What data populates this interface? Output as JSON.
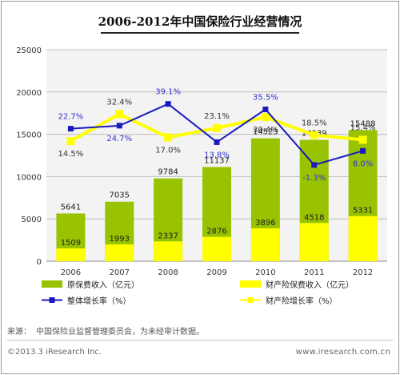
{
  "title": "2006-2012年中国保险行业经营情况",
  "source_label": "来源：",
  "source_text": "中国保险业监督管理委员会，为未经审计数据。",
  "copyright": "©2013.3 iResearch Inc.",
  "website": "www.iresearch.com.cn",
  "colors": {
    "total_bar": "#99c200",
    "property_bar": "#ffff00",
    "total_growth_line": "#1a1abf",
    "property_growth_line": "#ffff00",
    "growth_label": "#3333cc",
    "plot_bg": "#f3f3f3"
  },
  "chart_data": {
    "type": "bar",
    "categories": [
      "2006",
      "2007",
      "2008",
      "2009",
      "2010",
      "2011",
      "2012"
    ],
    "ylim": [
      0,
      25000
    ],
    "yticks": [
      "0",
      "5000",
      "10000",
      "15000",
      "20000",
      "25000"
    ],
    "grid": true,
    "series": [
      {
        "name": "原保费收入（亿元）",
        "kind": "bar",
        "values": [
          5641,
          7035,
          9784,
          11137,
          14523,
          14339,
          15488
        ]
      },
      {
        "name": "财产险保费收入（亿元）",
        "kind": "bar",
        "values": [
          1509,
          1993,
          2337,
          2876,
          3896,
          4518,
          5331
        ]
      },
      {
        "name": "整体增长率（%）",
        "kind": "line",
        "values": [
          22.7,
          24.7,
          39.1,
          13.8,
          35.5,
          -1.3,
          8.0
        ],
        "labels": [
          "22.7%",
          "24.7%",
          "39.1%",
          "13.8%",
          "35.5%",
          "-1.3%",
          "8.0%"
        ]
      },
      {
        "name": "财产险增长率（%）",
        "kind": "line",
        "values": [
          14.5,
          32.4,
          17.0,
          23.1,
          30.4,
          18.5,
          15.4
        ],
        "labels": [
          "14.5%",
          "32.4%",
          "17.0%",
          "23.1%",
          "30.4%",
          "18.5%",
          "15.4%"
        ]
      }
    ],
    "legend_position": "bottom"
  }
}
